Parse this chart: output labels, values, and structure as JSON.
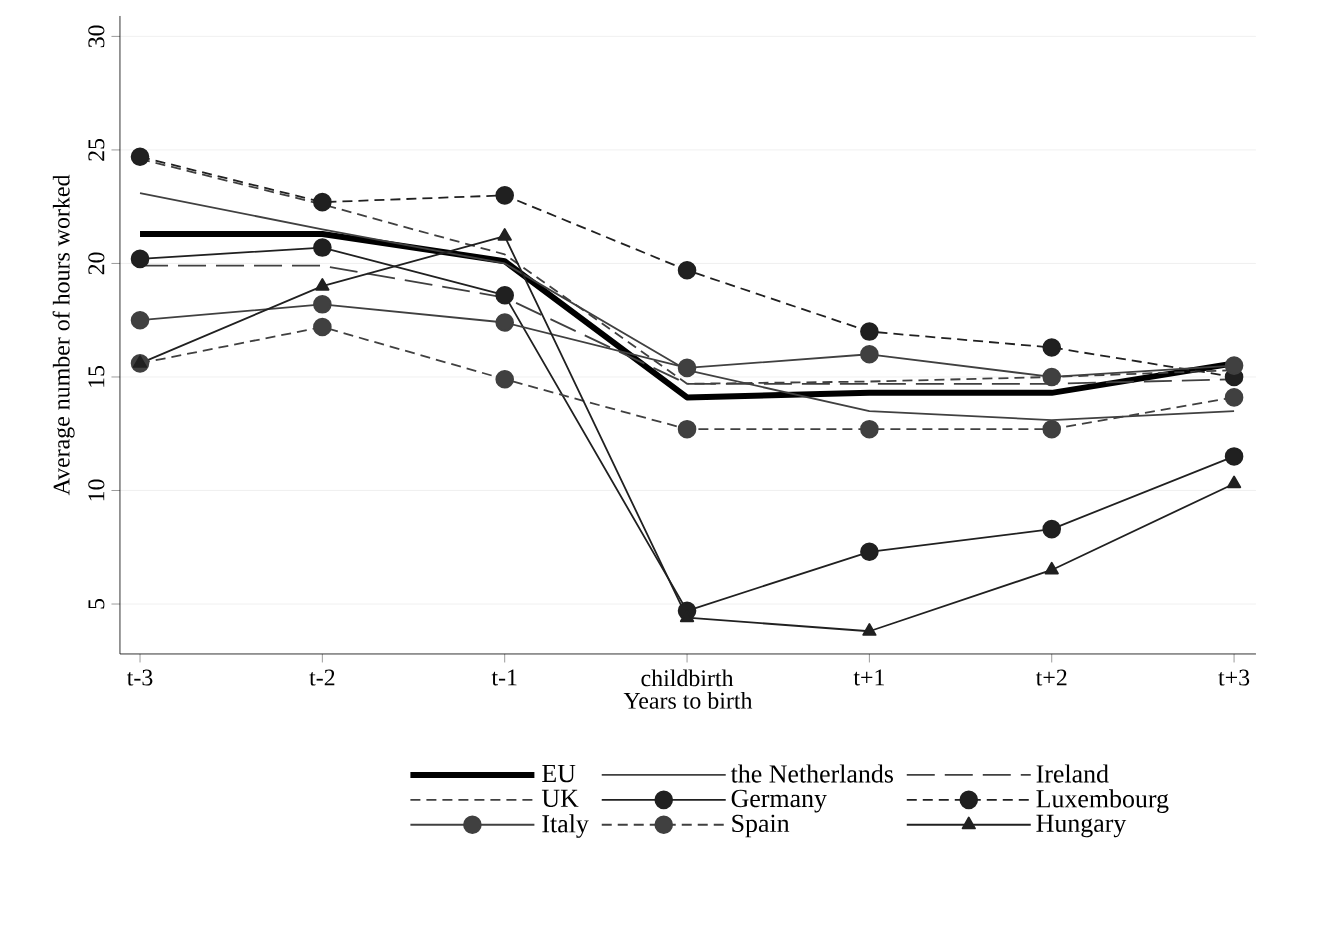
{
  "chart_data": {
    "type": "line",
    "xlabel": "Years to birth",
    "ylabel": "Average number of hours worked",
    "categories": [
      "t-3",
      "t-2",
      "t-1",
      "childbirth",
      "t+1",
      "t+2",
      "t+3"
    ],
    "ylim": [
      2.8,
      30.9
    ],
    "yticks": [
      5,
      10,
      15,
      20,
      25,
      30
    ],
    "grid": "y",
    "legend": "bottom",
    "series": [
      {
        "name": "EU",
        "color": "#000000",
        "line_style": "solid",
        "marker": "none",
        "values": [
          21.3,
          21.3,
          20.1,
          14.1,
          14.3,
          14.3,
          15.6
        ]
      },
      {
        "name": "the Netherlands",
        "color": "#404040",
        "line_style": "solid",
        "marker": "none",
        "values": [
          23.1,
          21.5,
          20.0,
          15.3,
          13.5,
          13.1,
          13.5
        ]
      },
      {
        "name": "Ireland",
        "color": "#404040",
        "line_style": "longdashed",
        "marker": "none",
        "values": [
          19.9,
          19.9,
          18.5,
          14.7,
          14.7,
          14.7,
          14.9
        ]
      },
      {
        "name": "UK",
        "color": "#404040",
        "line_style": "dashed",
        "marker": "none",
        "values": [
          24.6,
          22.6,
          20.4,
          14.7,
          14.8,
          15.0,
          15.3
        ]
      },
      {
        "name": "Germany",
        "color": "#202020",
        "line_style": "solid",
        "marker": "circle",
        "values": [
          20.2,
          20.7,
          18.6,
          4.7,
          7.3,
          8.3,
          11.5
        ]
      },
      {
        "name": "Luxembourg",
        "color": "#202020",
        "line_style": "dashed",
        "marker": "circle",
        "values": [
          24.7,
          22.7,
          23.0,
          19.7,
          17.0,
          16.3,
          15.0
        ]
      },
      {
        "name": "Italy",
        "color": "#404040",
        "line_style": "solid",
        "marker": "circle",
        "values": [
          17.5,
          18.2,
          17.4,
          15.4,
          16.0,
          15.0,
          15.5
        ]
      },
      {
        "name": "Spain",
        "color": "#404040",
        "line_style": "dashed",
        "marker": "circle",
        "values": [
          15.6,
          17.2,
          14.9,
          12.7,
          12.7,
          12.7,
          14.1
        ]
      },
      {
        "name": "Hungary",
        "color": "#202020",
        "line_style": "solid",
        "marker": "triangle",
        "values": [
          15.6,
          19.0,
          21.2,
          4.4,
          3.8,
          6.5,
          10.3
        ]
      }
    ]
  }
}
